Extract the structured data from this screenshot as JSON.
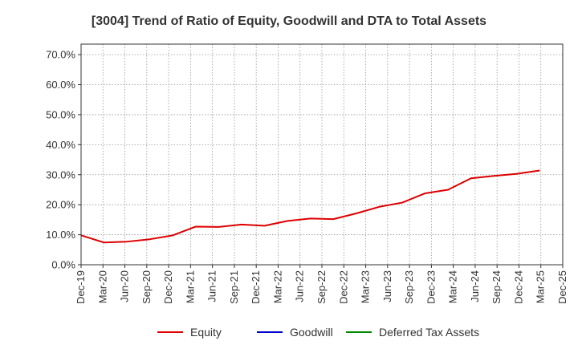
{
  "chart_data": {
    "type": "line",
    "title": "[3004]  Trend of Ratio of Equity, Goodwill and DTA to Total Assets",
    "xlabel": "",
    "ylabel": "",
    "ylim": [
      0,
      0.735
    ],
    "yticks": [
      0,
      0.1,
      0.2,
      0.3,
      0.4,
      0.5,
      0.6,
      0.7
    ],
    "ytick_labels": [
      "0.0%",
      "10.0%",
      "20.0%",
      "30.0%",
      "40.0%",
      "50.0%",
      "60.0%",
      "70.0%"
    ],
    "x_tick_labels": [
      "Dec-19",
      "Mar-20",
      "Jun-20",
      "Sep-20",
      "Dec-20",
      "Mar-21",
      "Jun-21",
      "Sep-21",
      "Dec-21",
      "Mar-22",
      "Jun-22",
      "Sep-22",
      "Dec-22",
      "Mar-23",
      "Jun-23",
      "Sep-23",
      "Dec-23",
      "Mar-24",
      "Jun-24",
      "Sep-24",
      "Dec-24",
      "Mar-25",
      "Dec-25"
    ],
    "x_range": [
      0,
      21
    ],
    "grid": true,
    "legend_position": "bottom",
    "series": [
      {
        "name": "Equity",
        "color": "#dd0000",
        "x": [
          0,
          1,
          2,
          3,
          4,
          5,
          6,
          7,
          8,
          9,
          10,
          11,
          12,
          13,
          14,
          15,
          16,
          17,
          18,
          19,
          20
        ],
        "values": [
          0.098,
          0.074,
          0.077,
          0.085,
          0.098,
          0.127,
          0.126,
          0.134,
          0.13,
          0.146,
          0.154,
          0.152,
          0.171,
          0.193,
          0.207,
          0.238,
          0.25,
          0.288,
          0.296,
          0.303,
          0.314
        ]
      },
      {
        "name": "Goodwill",
        "color": "#0000cc",
        "x": [],
        "values": []
      },
      {
        "name": "Deferred Tax Assets",
        "color": "#008800",
        "x": [],
        "values": []
      }
    ]
  }
}
